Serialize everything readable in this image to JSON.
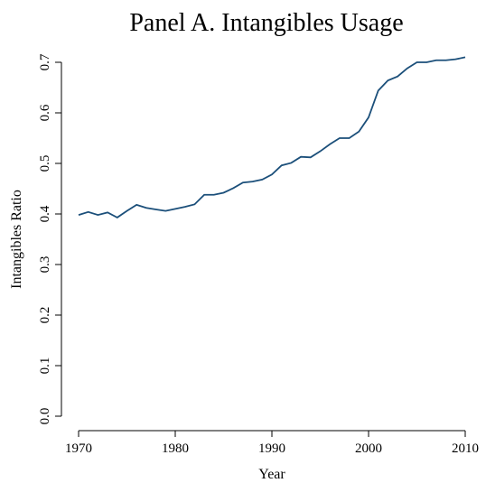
{
  "chart_data": {
    "type": "line",
    "title": "Panel A. Intangibles Usage",
    "x_label": "Year",
    "y_label": "Intangibles Ratio",
    "x": [
      1970,
      1971,
      1972,
      1973,
      1974,
      1975,
      1976,
      1977,
      1978,
      1979,
      1980,
      1981,
      1982,
      1983,
      1984,
      1985,
      1986,
      1987,
      1988,
      1989,
      1990,
      1991,
      1992,
      1993,
      1994,
      1995,
      1996,
      1997,
      1998,
      1999,
      2000,
      2001,
      2002,
      2003,
      2004,
      2005,
      2006,
      2007,
      2008,
      2009,
      2010
    ],
    "series": [
      {
        "name": "Intangibles Ratio",
        "color": "#1b4f7a",
        "values": [
          0.398,
          0.404,
          0.398,
          0.403,
          0.393,
          0.406,
          0.418,
          0.412,
          0.409,
          0.406,
          0.41,
          0.414,
          0.419,
          0.438,
          0.438,
          0.442,
          0.451,
          0.462,
          0.464,
          0.468,
          0.478,
          0.496,
          0.501,
          0.513,
          0.512,
          0.524,
          0.538,
          0.55,
          0.55,
          0.563,
          0.591,
          0.644,
          0.664,
          0.672,
          0.688,
          0.7,
          0.7,
          0.704,
          0.704,
          0.706,
          0.71
        ]
      }
    ],
    "xlim": [
      1970,
      2010
    ],
    "xticks": [
      1970,
      1980,
      1990,
      2000,
      2010
    ],
    "ylim": [
      0,
      0.7
    ],
    "yticks": [
      {
        "value": 0,
        "label": "0.0"
      },
      0.1,
      0.2,
      0.3,
      0.4,
      0.5,
      0.6,
      0.7
    ],
    "grid": false
  }
}
